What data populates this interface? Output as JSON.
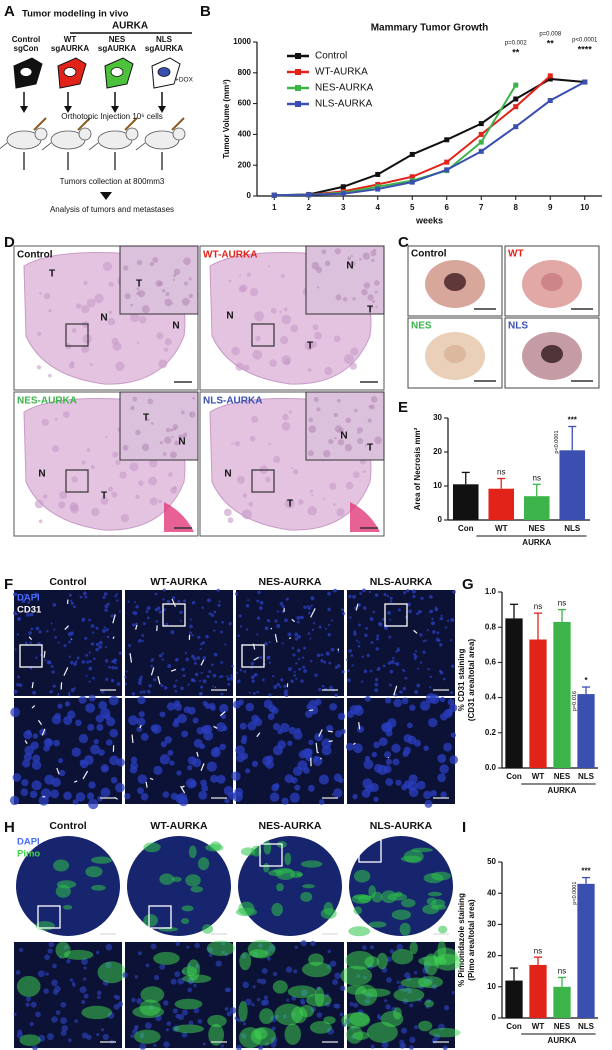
{
  "panel_labels": [
    "A",
    "B",
    "C",
    "D",
    "E",
    "F",
    "G",
    "H",
    "I"
  ],
  "schematic": {
    "title": "Tumor modeling in vivo",
    "group": "AURKA",
    "conditions": [
      [
        "Control",
        "sgCon"
      ],
      [
        "WT",
        "sgAURKA"
      ],
      [
        "NES",
        "sgAURKA"
      ],
      [
        "NLS",
        "sgAURKA"
      ]
    ],
    "dox": "+DOX",
    "steps": [
      "Orthotopic Injection 10⁶ cells",
      "Tumors collection at 800mm3",
      "Analysis of tumors and metastases"
    ]
  },
  "histology": {
    "labels": [
      "Control",
      "WT-AURKA",
      "NES-AURKA",
      "NLS-AURKA"
    ],
    "colors": [
      "#111111",
      "#e2231a",
      "#3cb44a",
      "#3a4fb0"
    ],
    "regions": [
      [
        "T",
        "N",
        "T",
        "N"
      ],
      [
        "N",
        "T",
        "N",
        "T"
      ],
      [
        "N",
        "T",
        "T",
        "N"
      ],
      [
        "N",
        "T",
        "N",
        "T"
      ]
    ]
  },
  "photos": {
    "labels": [
      "Control",
      "WT",
      "NES",
      "NLS"
    ],
    "colors": [
      "#111111",
      "#e2231a",
      "#3cb44a",
      "#3a4fb0"
    ]
  },
  "cd31": {
    "columns": [
      "Control",
      "WT-AURKA",
      "NES-AURKA",
      "NLS-AURKA"
    ],
    "stains": [
      "DAPI",
      "CD31"
    ],
    "stain_colors": [
      "#4a6cff",
      "#ffffff"
    ]
  },
  "pimo": {
    "columns": [
      "Control",
      "WT-AURKA",
      "NES-AURKA",
      "NLS-AURKA"
    ],
    "stains": [
      "DAPI",
      "Pimo"
    ],
    "stain_colors": [
      "#4a6cff",
      "#3cd94a"
    ]
  },
  "chart_data": [
    {
      "type": "line",
      "title": "Mammary Tumor Growth",
      "xlabel": "weeks",
      "ylabel": [
        "Tumor Volume (mm³)"
      ],
      "x": [
        1,
        2,
        3,
        4,
        5,
        6,
        7,
        8,
        9,
        10
      ],
      "xlim": [
        0.5,
        10.5
      ],
      "xticks": [
        1,
        2,
        3,
        4,
        5,
        6,
        7,
        8,
        9,
        10
      ],
      "ylim": [
        0,
        1000
      ],
      "yticks": [
        0,
        200,
        400,
        600,
        800,
        1000
      ],
      "legend": "upper left",
      "series": [
        {
          "name": "Control",
          "color": "#111111",
          "values": [
            5,
            10,
            60,
            140,
            270,
            365,
            470,
            630,
            760,
            740
          ]
        },
        {
          "name": "WT-AURKA",
          "color": "#e2231a",
          "values": [
            5,
            8,
            30,
            75,
            125,
            220,
            400,
            580,
            780,
            null
          ]
        },
        {
          "name": "NES-AURKA",
          "color": "#3cb44a",
          "values": [
            5,
            8,
            20,
            60,
            100,
            165,
            350,
            720,
            null,
            null
          ]
        },
        {
          "name": "NLS-AURKA",
          "color": "#3a4fb0",
          "values": [
            5,
            8,
            15,
            45,
            90,
            170,
            290,
            450,
            620,
            740
          ]
        }
      ],
      "annotations": [
        {
          "x": 8,
          "text": "p=0.002",
          "stars": "**"
        },
        {
          "x": 9,
          "text": "p=0.008",
          "stars": "**"
        },
        {
          "x": 10,
          "text": "p<0.0001",
          "stars": "****"
        }
      ]
    },
    {
      "type": "bar",
      "ylabel": [
        "Area of Necrosis mm²"
      ],
      "categories": [
        "Con",
        "WT",
        "NES",
        "NLS"
      ],
      "values": [
        10.5,
        9.2,
        7,
        20.5
      ],
      "errors": [
        3.5,
        3,
        3.5,
        7
      ],
      "colors": [
        "#111111",
        "#e2231a",
        "#3cb44a",
        "#3a4fb0"
      ],
      "ylim": [
        0,
        30
      ],
      "yticks": [
        0,
        10,
        20,
        30
      ],
      "group_label": "AURKA",
      "annotations": [
        null,
        "ns",
        "ns",
        "***"
      ],
      "p_label": "p<0.0001"
    },
    {
      "type": "bar",
      "ylabel": [
        "% CD31 staining",
        "(CD31 area/total area)"
      ],
      "categories": [
        "Con",
        "WT",
        "NES",
        "NLS"
      ],
      "values": [
        0.85,
        0.73,
        0.83,
        0.42
      ],
      "errors": [
        0.08,
        0.15,
        0.07,
        0.04
      ],
      "colors": [
        "#111111",
        "#e2231a",
        "#3cb44a",
        "#3a4fb0"
      ],
      "ylim": [
        0,
        1
      ],
      "yticks": [
        {
          "value": 0,
          "label": "0.0"
        },
        0.2,
        0.4,
        0.6,
        0.8,
        {
          "value": 1,
          "label": "1.0"
        }
      ],
      "group_label": "AURKA",
      "annotations": [
        null,
        "ns",
        "ns",
        "*"
      ],
      "p_label": "p=0.016"
    },
    {
      "type": "bar",
      "ylabel": [
        "% Pimonidazole staining",
        "(Pimo area/total area)"
      ],
      "categories": [
        "Con",
        "WT",
        "NES",
        "NLS"
      ],
      "values": [
        12,
        17,
        10,
        43
      ],
      "errors": [
        4,
        2.5,
        3,
        2
      ],
      "colors": [
        "#111111",
        "#e2231a",
        "#3cb44a",
        "#3a4fb0"
      ],
      "ylim": [
        0,
        50
      ],
      "yticks": [
        0,
        10,
        20,
        30,
        40,
        50
      ],
      "group_label": "AURKA",
      "annotations": [
        null,
        "ns",
        "ns",
        "***"
      ],
      "p_label": "p<0.0001"
    }
  ]
}
